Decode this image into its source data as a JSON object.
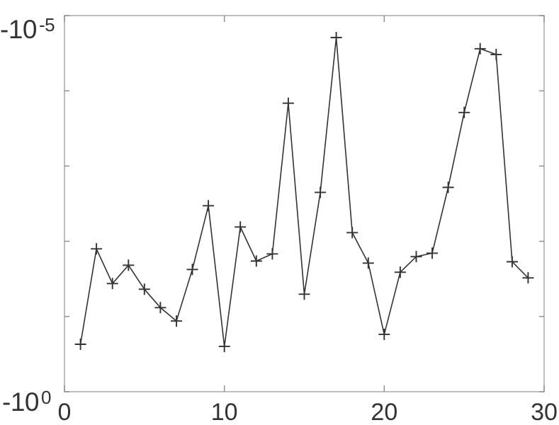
{
  "figure": {
    "background": "#ffffff",
    "axis_color": "#a8a8a8",
    "tick_color": "#8a8a8a",
    "label_color": "#333333"
  },
  "chart_data": {
    "type": "line",
    "title": "",
    "xlabel": "",
    "ylabel": "",
    "grid": false,
    "legend_position": "none",
    "marker": "+",
    "line_color": "#333333",
    "x": [
      1,
      2,
      3,
      4,
      5,
      6,
      7,
      8,
      9,
      10,
      11,
      12,
      13,
      14,
      15,
      16,
      17,
      18,
      19,
      20,
      21,
      22,
      23,
      24,
      25,
      26,
      27,
      28,
      29
    ],
    "y": [
      -0.234,
      -0.0126,
      -0.0365,
      -0.0208,
      -0.0434,
      -0.0762,
      -0.115,
      -0.0237,
      -0.00337,
      -0.25,
      -0.00646,
      -0.0183,
      -0.0147,
      -0.000146,
      -0.0505,
      -0.00224,
      -1.96e-05,
      -0.00768,
      -0.0195,
      -0.173,
      -0.0258,
      -0.016,
      -0.0144,
      -0.00192,
      -0.000194,
      -2.76e-05,
      -3.29e-05,
      -0.0187,
      -0.0307
    ],
    "x_axis": {
      "lim": [
        0,
        30
      ],
      "ticks": [
        0,
        10,
        20,
        30
      ],
      "tick_labels": [
        "0",
        "10",
        "20",
        "30"
      ]
    },
    "y_axis": {
      "scale": "negative-log",
      "lim_exponents": [
        0,
        -5
      ],
      "top_tick": {
        "base": "-10",
        "exponent": "-5"
      },
      "bottom_tick": {
        "base": "-10",
        "exponent": "0"
      },
      "unlabeled_decade_tick_exponents": [
        -1,
        -2,
        -3,
        -4
      ]
    }
  }
}
